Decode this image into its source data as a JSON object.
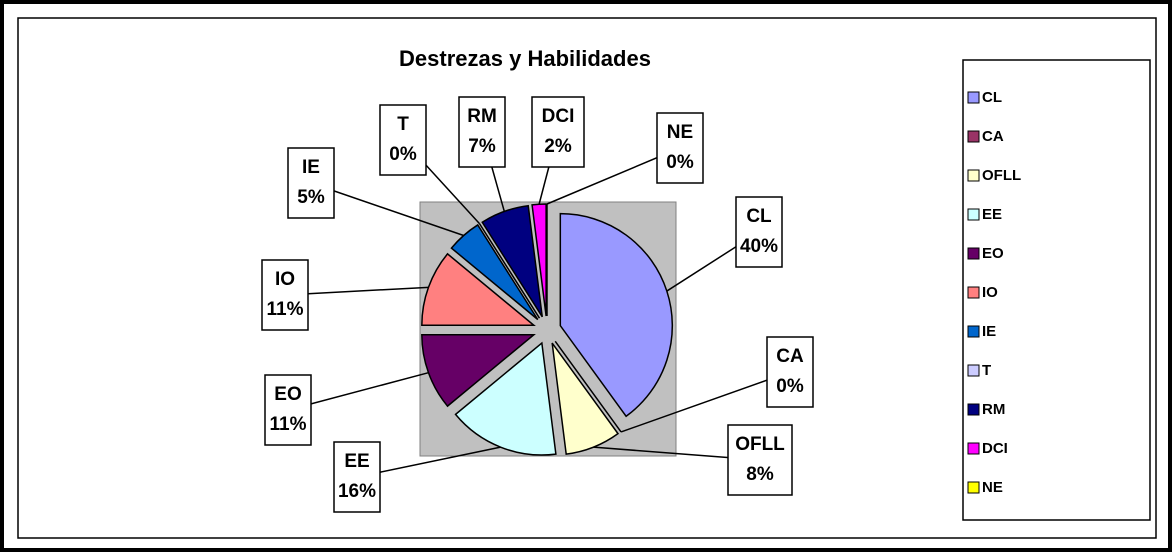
{
  "chart_data": {
    "type": "pie",
    "title": "Destrezas y Habilidades",
    "categories": [
      "CL",
      "CA",
      "OFLL",
      "EE",
      "EO",
      "IO",
      "IE",
      "T",
      "RM",
      "DCI",
      "NE"
    ],
    "values": [
      40,
      0,
      8,
      16,
      11,
      11,
      5,
      0,
      7,
      2,
      0
    ],
    "value_labels": [
      "40%",
      "0%",
      "8%",
      "16%",
      "11%",
      "11%",
      "5%",
      "0%",
      "7%",
      "2%",
      "0%"
    ],
    "colors": [
      "#9999ff",
      "#993366",
      "#ffffcc",
      "#ccffff",
      "#660066",
      "#ff8080",
      "#0066cc",
      "#ccccff",
      "#000080",
      "#ff00ff",
      "#ffff00"
    ],
    "legend": "right"
  }
}
